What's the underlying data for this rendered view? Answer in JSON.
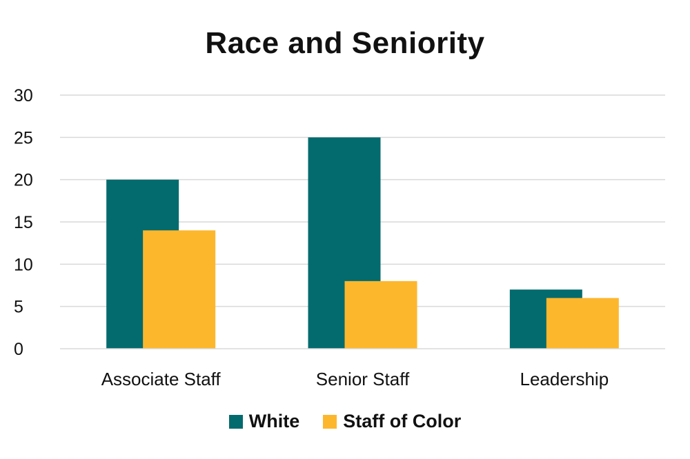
{
  "chart_data": {
    "type": "bar",
    "title": "Race and Seniority",
    "categories": [
      "Associate Staff",
      "Senior Staff",
      "Leadership"
    ],
    "series": [
      {
        "name": "White",
        "color": "#036B6E",
        "values": [
          20,
          25,
          7
        ]
      },
      {
        "name": "Staff of Color",
        "color": "#FDB72D",
        "values": [
          14,
          8,
          6
        ]
      }
    ],
    "y_ticks": [
      0,
      5,
      10,
      15,
      20,
      25,
      30
    ],
    "ylim": [
      0,
      30
    ],
    "xlabel": "",
    "ylabel": "",
    "grid": true,
    "legend_position": "bottom"
  }
}
